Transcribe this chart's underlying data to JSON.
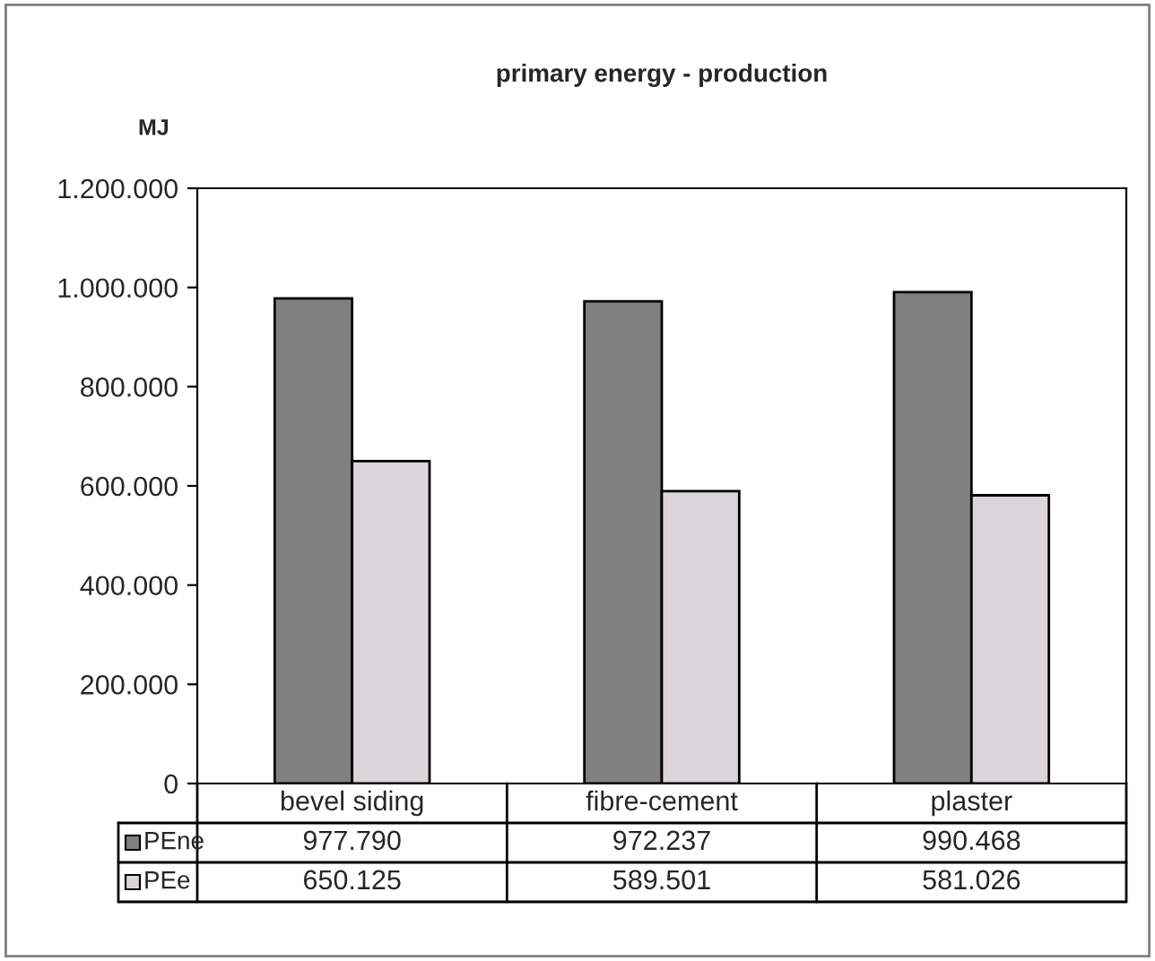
{
  "chart_data": {
    "type": "bar",
    "title": "primary energy - production",
    "ylabel": "MJ",
    "categories": [
      "bevel siding",
      "fibre-cement",
      "plaster"
    ],
    "series": [
      {
        "name": "PEne",
        "color": "#808080",
        "values": [
          977790,
          972237,
          990468
        ],
        "value_labels": [
          "977.790",
          "972.237",
          "990.468"
        ]
      },
      {
        "name": "PEe",
        "color": "#d9d5d9",
        "values": [
          650125,
          589501,
          581026
        ],
        "value_labels": [
          "650.125",
          "589.501",
          "581.026"
        ]
      }
    ],
    "ylim": [
      0,
      1200000
    ],
    "yticks": [
      {
        "value": 0,
        "label": "0"
      },
      {
        "value": 200000,
        "label": "200.000"
      },
      {
        "value": 400000,
        "label": "400.000"
      },
      {
        "value": 600000,
        "label": "600.000"
      },
      {
        "value": 800000,
        "label": "800.000"
      },
      {
        "value": 1000000,
        "label": "1.000.000"
      },
      {
        "value": 1200000,
        "label": "1.200.000"
      }
    ],
    "grid": false,
    "legend": "bottom"
  }
}
